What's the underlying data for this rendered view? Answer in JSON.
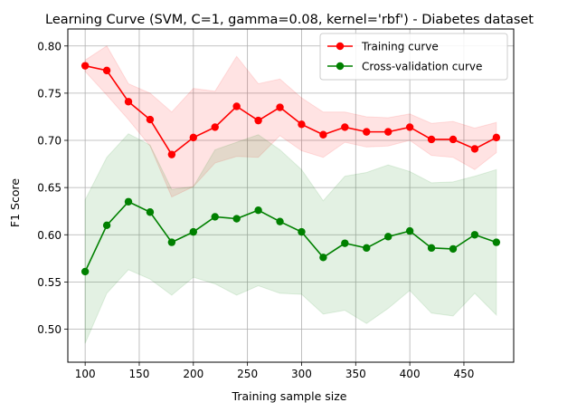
{
  "chart_data": {
    "type": "line",
    "title": "Learning Curve (SVM, C=1, gamma=0.08, kernel='rbf') - Diabetes dataset",
    "xlabel": "Training sample size",
    "ylabel": "F1 Score",
    "xlim": [
      84,
      496
    ],
    "ylim": [
      0.465,
      0.818
    ],
    "x_ticks": [
      "100",
      "150",
      "200",
      "250",
      "300",
      "350",
      "400",
      "450"
    ],
    "y_ticks": [
      "0.50",
      "0.55",
      "0.60",
      "0.65",
      "0.70",
      "0.75",
      "0.80"
    ],
    "grid": true,
    "legend_position": "top-right",
    "x": [
      100,
      120,
      140,
      160,
      180,
      200,
      220,
      240,
      260,
      280,
      300,
      320,
      340,
      360,
      380,
      400,
      420,
      440,
      460,
      480
    ],
    "series": [
      {
        "name": "Training curve",
        "color": "#ff0000",
        "values": [
          0.779,
          0.774,
          0.741,
          0.722,
          0.685,
          0.703,
          0.714,
          0.736,
          0.721,
          0.735,
          0.717,
          0.706,
          0.714,
          0.709,
          0.709,
          0.714,
          0.701,
          0.701,
          0.691,
          0.703
        ],
        "band_upper": [
          0.785,
          0.8,
          0.76,
          0.75,
          0.73,
          0.755,
          0.752,
          0.789,
          0.76,
          0.765,
          0.745,
          0.73,
          0.73,
          0.725,
          0.724,
          0.728,
          0.718,
          0.72,
          0.713,
          0.719
        ],
        "band_lower": [
          0.773,
          0.748,
          0.722,
          0.694,
          0.64,
          0.651,
          0.676,
          0.683,
          0.682,
          0.705,
          0.689,
          0.682,
          0.698,
          0.693,
          0.694,
          0.7,
          0.684,
          0.682,
          0.669,
          0.687
        ]
      },
      {
        "name": "Cross-validation curve",
        "color": "#008000",
        "values": [
          0.561,
          0.61,
          0.635,
          0.624,
          0.592,
          0.603,
          0.619,
          0.617,
          0.626,
          0.614,
          0.603,
          0.576,
          0.591,
          0.586,
          0.598,
          0.604,
          0.586,
          0.585,
          0.6,
          0.592
        ],
        "band_upper": [
          0.637,
          0.682,
          0.707,
          0.695,
          0.648,
          0.651,
          0.69,
          0.698,
          0.706,
          0.69,
          0.669,
          0.636,
          0.662,
          0.666,
          0.674,
          0.667,
          0.655,
          0.656,
          0.662,
          0.669
        ],
        "band_lower": [
          0.485,
          0.538,
          0.563,
          0.553,
          0.536,
          0.555,
          0.548,
          0.536,
          0.546,
          0.538,
          0.537,
          0.516,
          0.52,
          0.506,
          0.522,
          0.541,
          0.517,
          0.514,
          0.538,
          0.515
        ]
      }
    ]
  }
}
